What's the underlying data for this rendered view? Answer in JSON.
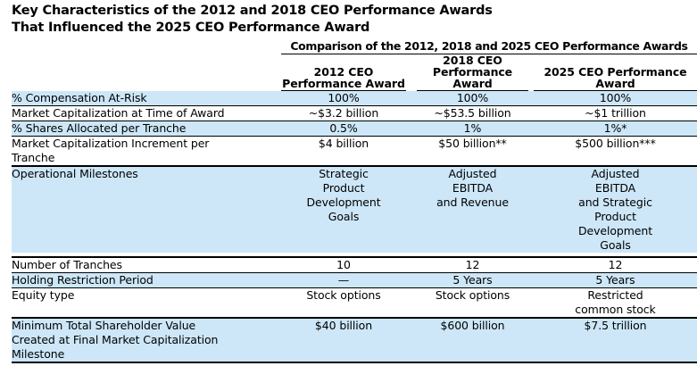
{
  "page": {
    "title": "Key Characteristics of the 2012 and 2018 CEO Performance Awards\nThat Influenced the 2025 CEO Performance Award"
  },
  "table": {
    "header": "Comparison of the 2012, 2018 and 2025 CEO Performance Awards",
    "columns": [
      {
        "label": "2012 CEO\nPerformance Award"
      },
      {
        "label": "2018 CEO\nPerformance\nAward"
      },
      {
        "label": "2025 CEO Performance\nAward"
      }
    ],
    "rows": [
      {
        "label": "% Compensation At-Risk",
        "values": [
          "100%",
          "100%",
          "100%"
        ]
      },
      {
        "label": "Market Capitalization at Time of Award",
        "values": [
          "~$3.2 billion",
          "~$53.5 billion",
          "~$1 trillion"
        ]
      },
      {
        "label": "% Shares Allocated per Tranche",
        "values": [
          "0.5%",
          "1%",
          "1%*"
        ]
      },
      {
        "label": "Market Capitalization Increment per\nTranche",
        "values": [
          "$4 billion",
          "$50 billion**",
          "$500 billion***"
        ]
      },
      {
        "label": "Operational Milestones",
        "values": [
          "Strategic\nProduct\nDevelopment\nGoals",
          "Adjusted\nEBITDA\nand Revenue",
          "Adjusted\nEBITDA\nand Strategic\nProduct\nDevelopment\nGoals"
        ]
      },
      {
        "label": "Number of Tranches",
        "values": [
          "10",
          "12",
          "12"
        ]
      },
      {
        "label": "Holding Restriction Period",
        "values": [
          "—",
          "5 Years",
          "5 Years"
        ]
      },
      {
        "label": "Equity type",
        "values": [
          "Stock options",
          "Stock options",
          "Restricted\ncommon stock"
        ]
      },
      {
        "label": "Minimum Total Shareholder Value\nCreated at Final Market Capitalization\nMilestone",
        "values": [
          "$40 billion",
          "$600 billion",
          "$7.5 trillion"
        ]
      }
    ]
  },
  "colors": {
    "row_shade": "#CDE7F8",
    "rule": "#000000",
    "text": "#000000",
    "background": "#FFFFFF"
  }
}
